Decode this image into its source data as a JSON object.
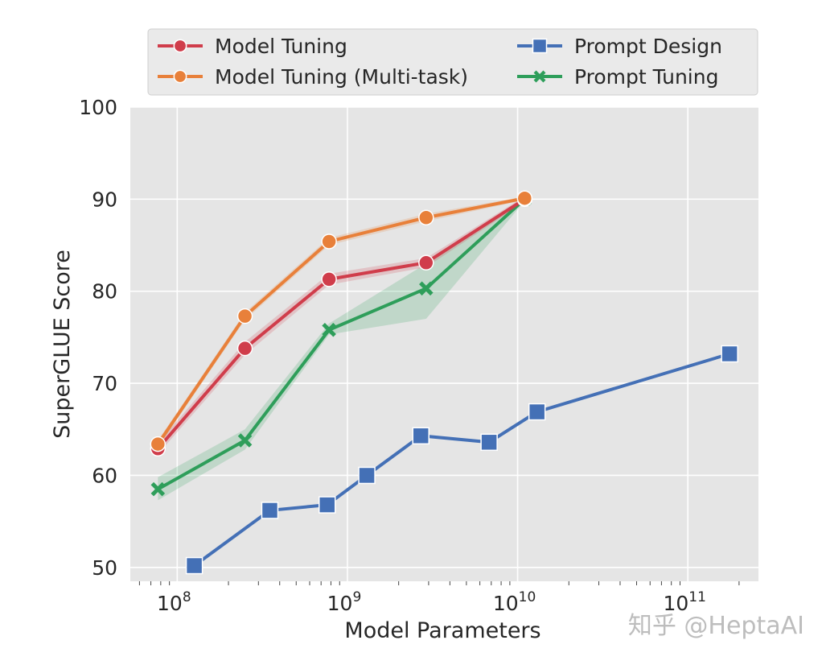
{
  "chart_data": {
    "type": "line",
    "title": "",
    "xlabel": "Model Parameters",
    "ylabel": "SuperGLUE Score",
    "xscale": "log",
    "xlim": [
      53000000.0,
      260000000000.0
    ],
    "ylim": [
      48.5,
      100
    ],
    "xticks": [
      {
        "value": 100000000.0,
        "label": "10^8"
      },
      {
        "value": 1000000000.0,
        "label": "10^9"
      },
      {
        "value": 10000000000.0,
        "label": "10^10"
      },
      {
        "value": 100000000000.0,
        "label": "10^11"
      }
    ],
    "yticks": [
      50,
      60,
      70,
      80,
      90,
      100
    ],
    "grid": true,
    "background": "#e5e5e5",
    "legend_placement": "top (above plot)",
    "series": [
      {
        "name": "Model Tuning",
        "color": "#d03d4b",
        "marker": "circle",
        "x": [
          77000000.0,
          250000000.0,
          780000000.0,
          2900000000.0,
          11000000000.0
        ],
        "y": [
          62.9,
          73.8,
          81.3,
          83.1,
          90.0
        ],
        "lower": [
          62.3,
          73.1,
          80.7,
          82.6,
          89.7
        ],
        "upper": [
          63.5,
          74.5,
          81.9,
          83.6,
          90.3
        ]
      },
      {
        "name": "Model Tuning (Multi-task)",
        "color": "#e8803a",
        "marker": "circle",
        "x": [
          77000000.0,
          250000000.0,
          780000000.0,
          2900000000.0,
          11000000000.0
        ],
        "y": [
          63.4,
          77.3,
          85.4,
          88.0,
          90.1
        ],
        "lower": [
          63.0,
          76.9,
          85.0,
          87.6,
          89.9
        ],
        "upper": [
          63.8,
          77.7,
          85.8,
          88.4,
          90.3
        ]
      },
      {
        "name": "Prompt Design",
        "color": "#4470b6",
        "marker": "square",
        "x": [
          126000000.0,
          350000000.0,
          760000000.0,
          1300000000.0,
          2700000000.0,
          6800000000.0,
          13000000000.0,
          176000000000.0
        ],
        "y": [
          50.2,
          56.2,
          56.8,
          60.0,
          64.3,
          63.6,
          66.9,
          73.2
        ]
      },
      {
        "name": "Prompt Tuning",
        "color": "#2e9e5a",
        "marker": "x",
        "x": [
          77000000.0,
          250000000.0,
          780000000.0,
          2900000000.0,
          11000000000.0
        ],
        "y": [
          58.5,
          63.8,
          75.8,
          80.3,
          90.0
        ],
        "lower": [
          57.3,
          62.8,
          75.3,
          77.0,
          89.8
        ],
        "upper": [
          59.8,
          65.0,
          76.5,
          83.0,
          90.2
        ]
      }
    ]
  },
  "watermark": "知乎 @HeptaAI"
}
